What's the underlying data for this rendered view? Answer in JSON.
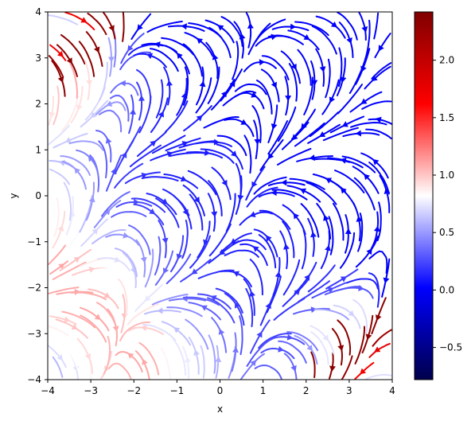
{
  "chart_data": {
    "type": "streamplot",
    "title": "",
    "xlabel": "x",
    "ylabel": "y",
    "xlim": [
      -4,
      4
    ],
    "ylim": [
      -4,
      4
    ],
    "x_ticks": [
      "−4",
      "−3",
      "−2",
      "−1",
      "0",
      "1",
      "2",
      "3",
      "4"
    ],
    "x_tick_values": [
      -4,
      -3,
      -2,
      -1,
      0,
      1,
      2,
      3,
      4
    ],
    "y_ticks": [
      "−4",
      "−3",
      "−2",
      "−1",
      "0",
      "1",
      "2",
      "3",
      "4"
    ],
    "y_tick_values": [
      -4,
      -3,
      -2,
      -1,
      0,
      1,
      2,
      3,
      4
    ],
    "grid": false,
    "colormap": "seismic",
    "colorbar": {
      "range": [
        -0.78,
        2.42
      ],
      "ticks": [
        "−0.5",
        "0.0",
        "0.5",
        "1.0",
        "1.5",
        "2.0"
      ],
      "tick_values": [
        -0.5,
        0.0,
        0.5,
        1.0,
        1.5,
        2.0
      ],
      "colors": {
        "low": "#00004c",
        "mid_low": "#0000ff",
        "center": "#ffffff",
        "mid_high": "#ff0000",
        "high": "#800000"
      }
    },
    "color_field_samples": [
      {
        "x": -4,
        "y": 4,
        "value": 2.3
      },
      {
        "x": 4,
        "y": -4,
        "value": 2.3
      },
      {
        "x": -4,
        "y": -3,
        "value": 1.0
      },
      {
        "x": 3.5,
        "y": -3,
        "value": 1.1
      },
      {
        "x": -3.5,
        "y": 2.5,
        "value": 1.0
      },
      {
        "x": 0,
        "y": 0,
        "value": 0.05
      },
      {
        "x": 3.5,
        "y": 2.5,
        "value": -0.7
      },
      {
        "x": 3.5,
        "y": 0,
        "value": -0.6
      }
    ]
  }
}
